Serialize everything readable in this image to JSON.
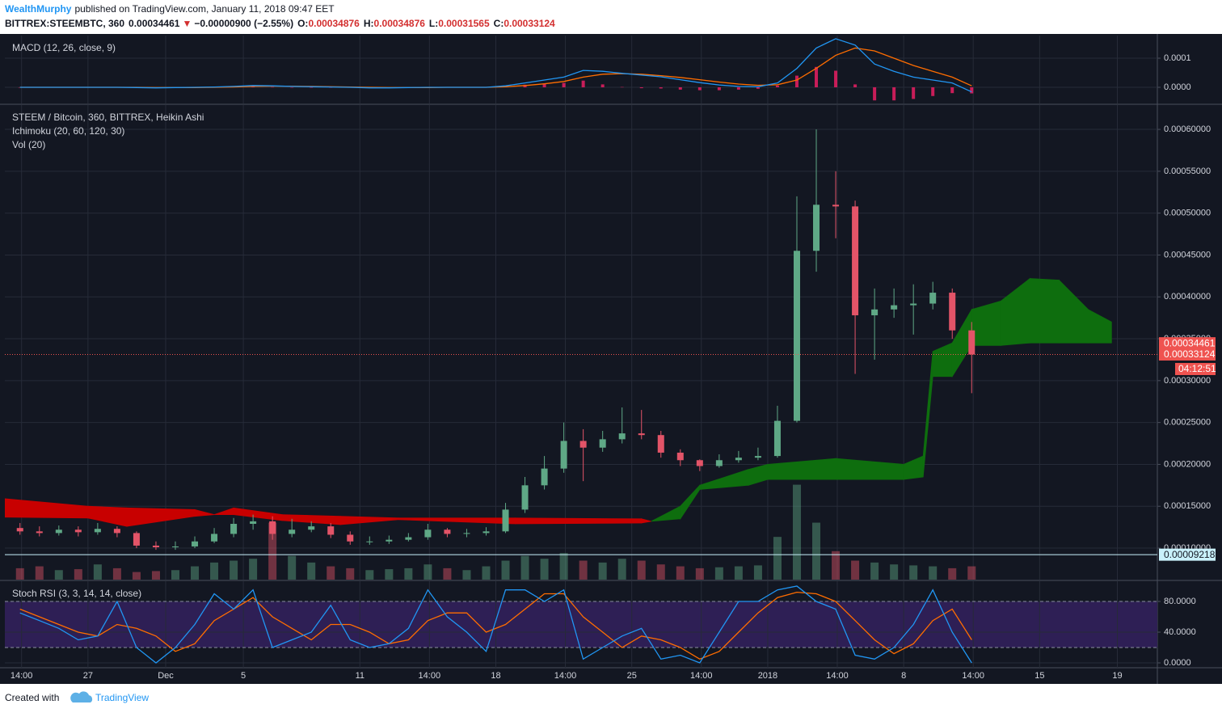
{
  "header": {
    "author": "WealthMurphy",
    "published": "published on TradingView.com, January 11, 2018 09:47 EET",
    "symbol": "BITTREX:STEEMBTC, 360",
    "last": "0.00034461",
    "change_arrow": "▼",
    "change": "−0.00000900 (−2.55%)",
    "o_label": "O:",
    "open": "0.00034876",
    "h_label": "H:",
    "high": "0.00034876",
    "l_label": "L:",
    "low": "0.00031565",
    "c_label": "C:",
    "close": "0.00033124"
  },
  "footer": {
    "created": "Created with",
    "brand": "TradingView"
  },
  "chart_data": [
    {
      "type": "macd",
      "title": "MACD (12, 26, close, 9)",
      "x": [
        0.5,
        1.5,
        2.5,
        3.5,
        4.5,
        5.5,
        6.5,
        7.5,
        8.5,
        9.5,
        10.5,
        11.5,
        12.5,
        13.5,
        14.5,
        15.5,
        16.5,
        17.5,
        18.5,
        19.5,
        20.5,
        21.5,
        22.5,
        23.5,
        24.5,
        25.5,
        26.5,
        27.5,
        28.5,
        29.5,
        30.5,
        31.5,
        32.5,
        33.5,
        34.5,
        35.5,
        36.5,
        37.5,
        38.5,
        39.5,
        40.5,
        41.5,
        42.5,
        43.5,
        44.5,
        45.5,
        46.5,
        47.5,
        48.5,
        49.5
      ],
      "macd": [
        0,
        0,
        0,
        0,
        0,
        0,
        -1e-06,
        -2e-06,
        -1e-06,
        0,
        1e-06,
        3e-06,
        6e-06,
        5e-06,
        3e-06,
        2e-06,
        1e-06,
        0,
        -2e-06,
        -2e-06,
        -1e-06,
        0,
        0,
        0,
        0,
        5e-06,
        1.5e-05,
        2.5e-05,
        3.5e-05,
        5.8e-05,
        5.5e-05,
        4.8e-05,
        4.2e-05,
        3.6e-05,
        2.6e-05,
        1.6e-05,
        8e-06,
        3e-06,
        2e-06,
        1.5e-05,
        6.5e-05,
        0.000135,
        0.000167,
        0.000145,
        8e-05,
        5.5e-05,
        3.5e-05,
        2.5e-05,
        1.5e-05,
        -1.6e-05
      ],
      "signal": [
        0,
        0,
        0,
        0,
        0,
        0,
        0,
        -1e-06,
        -1e-06,
        -1e-06,
        0,
        1e-06,
        3e-06,
        4e-06,
        4e-06,
        3e-06,
        2e-06,
        1e-06,
        0,
        -1e-06,
        -1e-06,
        -1e-06,
        0,
        0,
        0,
        2e-06,
        6e-06,
        1.2e-05,
        2e-05,
        3.5e-05,
        4.5e-05,
        4.7e-05,
        4.5e-05,
        4e-05,
        3.4e-05,
        2.6e-05,
        1.8e-05,
        1.1e-05,
        7e-06,
        9e-06,
        2.5e-05,
        6.5e-05,
        0.00011,
        0.000135,
        0.000125,
        0.0001,
        7.5e-05,
        5.5e-05,
        3.5e-05,
        5e-06
      ],
      "histogram": [
        0,
        0,
        0,
        0,
        0,
        0,
        -1e-06,
        -1e-06,
        0,
        1e-06,
        1e-06,
        2e-06,
        3e-06,
        1e-06,
        -1e-06,
        -1e-06,
        -1e-06,
        -1e-06,
        -2e-06,
        -1e-06,
        0,
        1e-06,
        0,
        0,
        0,
        3e-06,
        9e-06,
        1.3e-05,
        1.5e-05,
        2.3e-05,
        1e-05,
        1e-06,
        -3e-06,
        -4e-06,
        -8e-06,
        -1e-05,
        -1e-05,
        -8e-06,
        -5e-06,
        6e-06,
        4e-05,
        7e-05,
        5.7e-05,
        1e-05,
        -4.5e-05,
        -4.5e-05,
        -4e-05,
        -3e-05,
        -2e-05,
        -2.1e-05
      ],
      "macd_color": "#2196f3",
      "signal_color": "#ff6d00",
      "histogram_color": "#e91e63",
      "xlim": [
        -0.28,
        59.06
      ],
      "ylim": [
        -5.56e-05,
        0.0001778
      ],
      "yticks": [
        {
          "value": 0,
          "label": "0.0000"
        },
        0.0001
      ],
      "grid": true
    },
    {
      "type": "candlestick",
      "title": "STEEM / Bitcoin, 360, BITTREX, Heikin Ashi",
      "indicators": [
        "Ichimoku (20, 60, 120, 30)",
        "Vol (20)"
      ],
      "x": [
        0.5,
        1.5,
        2.5,
        3.5,
        4.5,
        5.5,
        6.5,
        7.5,
        8.5,
        9.5,
        10.5,
        11.5,
        12.5,
        13.5,
        14.5,
        15.5,
        16.5,
        17.5,
        18.5,
        19.5,
        20.5,
        21.5,
        22.5,
        23.5,
        24.5,
        25.5,
        26.5,
        27.5,
        28.5,
        29.5,
        30.5,
        31.5,
        32.5,
        33.5,
        34.5,
        35.5,
        36.5,
        37.5,
        38.5,
        39.5,
        40.5,
        41.5,
        42.5,
        43.5,
        44.5,
        45.5,
        46.5,
        47.5,
        48.5,
        49.5
      ],
      "open": [
        0.000124,
        0.00012,
        0.000118,
        0.000122,
        0.000119,
        0.000123,
        0.000118,
        0.000103,
        0.000101,
        0.000102,
        0.000108,
        0.000117,
        0.000129,
        0.000132,
        0.000117,
        0.000122,
        0.000126,
        0.000116,
        0.000108,
        0.000108,
        0.00011,
        0.000113,
        0.000122,
        0.000117,
        0.000118,
        0.00012,
        0.000146,
        0.000175,
        0.000195,
        0.000228,
        0.00022,
        0.00023,
        0.000237,
        0.000235,
        0.000214,
        0.000205,
        0.000198,
        0.000205,
        0.000208,
        0.00021,
        0.000252,
        0.000455,
        0.00051,
        0.000508,
        0.000378,
        0.000385,
        0.00039,
        0.000392,
        0.000405,
        0.00036
      ],
      "high": [
        0.00013,
        0.000126,
        0.000127,
        0.000126,
        0.00013,
        0.000126,
        0.00012,
        0.000108,
        0.000108,
        0.000114,
        0.000124,
        0.000136,
        0.00014,
        0.000138,
        0.000135,
        0.000132,
        0.00013,
        0.00012,
        0.000114,
        0.000115,
        0.000118,
        0.000129,
        0.000124,
        0.000123,
        0.000125,
        0.000154,
        0.000185,
        0.00021,
        0.00025,
        0.000242,
        0.00024,
        0.000268,
        0.000265,
        0.00024,
        0.000218,
        0.000206,
        0.000212,
        0.000216,
        0.00022,
        0.00027,
        0.00052,
        0.0006,
        0.00055,
        0.000515,
        0.00041,
        0.00041,
        0.000415,
        0.000418,
        0.00041,
        0.00037
      ],
      "low": [
        0.000116,
        0.000114,
        0.000115,
        0.000114,
        0.000116,
        0.000113,
        0.0001,
        9.8e-05,
        9.8e-05,
        0.0001,
        0.000106,
        0.000113,
        0.000122,
        0.00011,
        0.000113,
        0.000119,
        0.000112,
        0.000104,
        0.000104,
        0.000105,
        0.000108,
        0.00011,
        0.000113,
        0.000113,
        0.000115,
        0.000118,
        0.000142,
        0.00017,
        0.00019,
        0.00018,
        0.000215,
        0.000225,
        0.00023,
        0.000208,
        0.000198,
        0.000192,
        0.000196,
        0.000202,
        0.000205,
        0.000208,
        0.00025,
        0.00043,
        0.00047,
        0.000308,
        0.000325,
        0.000375,
        0.000355,
        0.000385,
        0.00035,
        0.000285
      ],
      "close": [
        0.00012,
        0.000118,
        0.000122,
        0.000119,
        0.000123,
        0.000118,
        0.000103,
        0.000101,
        0.000102,
        0.000108,
        0.000117,
        0.000129,
        0.000132,
        0.000117,
        0.000122,
        0.000126,
        0.000116,
        0.000108,
        0.000108,
        0.00011,
        0.000113,
        0.000122,
        0.000117,
        0.000118,
        0.00012,
        0.000146,
        0.000175,
        0.000195,
        0.000228,
        0.00022,
        0.00023,
        0.000237,
        0.000235,
        0.000214,
        0.000205,
        0.000198,
        0.000205,
        0.000208,
        0.00021,
        0.000252,
        0.000455,
        0.00051,
        0.000508,
        0.000378,
        0.000385,
        0.00039,
        0.000392,
        0.000405,
        0.00036,
        0.00033124
      ],
      "up_color": "#5fa886",
      "down_color": "#e35468",
      "volume": [
        12,
        14,
        10,
        11,
        16,
        12,
        8,
        9,
        10,
        14,
        18,
        20,
        22,
        60,
        25,
        18,
        14,
        12,
        10,
        11,
        12,
        16,
        12,
        10,
        14,
        20,
        25,
        22,
        28,
        20,
        18,
        22,
        20,
        16,
        14,
        12,
        13,
        14,
        15,
        45,
        100,
        60,
        30,
        20,
        18,
        16,
        15,
        14,
        12,
        14
      ],
      "volume_lim": [
        0,
        500
      ],
      "ichimoku": {
        "x": [
          -0.28,
          4,
          6,
          9.5,
          10.5,
          11.5,
          14,
          17,
          20,
          26,
          32.5,
          33,
          34.5,
          35.5,
          38,
          39,
          42.5,
          46,
          47,
          47.5,
          48.5,
          49.5,
          51,
          52.5,
          54,
          55.5,
          56.7
        ],
        "span_a": [
          0.000137,
          0.000136,
          0.000126,
          0.000138,
          0.00014,
          0.00014,
          0.000133,
          0.000128,
          0.000134,
          0.000129,
          0.00013,
          0.000132,
          0.00015,
          0.000175,
          0.000194,
          0.0002,
          0.000207,
          0.0002,
          0.00021,
          0.000335,
          0.000345,
          0.000385,
          0.000395,
          0.000422,
          0.00042,
          0.000385,
          0.00037
        ],
        "span_b": [
          0.000159,
          0.00015,
          0.000148,
          0.000146,
          0.00014,
          0.000148,
          0.00014,
          0.000138,
          0.000136,
          0.000136,
          0.000135,
          0.000132,
          0.000135,
          0.00017,
          0.000175,
          0.000182,
          0.000182,
          0.000182,
          0.000185,
          0.000305,
          0.000305,
          0.000342,
          0.000342,
          0.000345,
          0.000345,
          0.000345,
          0.000345
        ],
        "up_color": "#0e6e0e",
        "down_color": "#c80000"
      },
      "price_labels": [
        {
          "value": 0.00034461,
          "label": "0.00034461",
          "color": "#ef5350",
          "text_color": "#ffffff"
        },
        {
          "value": 0.00033124,
          "label": "0.00033124",
          "color": "#ef5350",
          "text_color": "#ffffff",
          "line": true
        },
        {
          "value": 9.218e-05,
          "label": "0.00009218",
          "color": "#c9f1fb",
          "text_color": "#131722",
          "line": true
        }
      ],
      "countdown": "04:12:51",
      "xlim": [
        -0.28,
        59.06
      ],
      "ylim": [
        6.24e-05,
        0.000629
      ],
      "yticks": [
        {
          "value": 0.0001,
          "label": "0.00010000"
        },
        {
          "value": 0.00015,
          "label": "0.00015000"
        },
        {
          "value": 0.0002,
          "label": "0.00020000"
        },
        {
          "value": 0.00025,
          "label": "0.00025000"
        },
        {
          "value": 0.0003,
          "label": "0.00030000"
        },
        {
          "value": 0.00035,
          "label": "0.00035000"
        },
        {
          "value": 0.0004,
          "label": "0.00040000"
        },
        {
          "value": 0.00045,
          "label": "0.00045000"
        },
        {
          "value": 0.0005,
          "label": "0.00050000"
        },
        {
          "value": 0.00055,
          "label": "0.00055000"
        },
        {
          "value": 0.0006,
          "label": "0.00060000"
        }
      ],
      "grid": true
    },
    {
      "type": "stoch",
      "title": "Stoch RSI (3, 3, 14, 14, close)",
      "x": [
        0.5,
        1.5,
        2.5,
        3.5,
        4.5,
        5.5,
        6.5,
        7.5,
        8.5,
        9.5,
        10.5,
        11.5,
        12.5,
        13.5,
        14.5,
        15.5,
        16.5,
        17.5,
        18.5,
        19.5,
        20.5,
        21.5,
        22.5,
        23.5,
        24.5,
        25.5,
        26.5,
        27.5,
        28.5,
        29.5,
        30.5,
        31.5,
        32.5,
        33.5,
        34.5,
        35.5,
        36.5,
        37.5,
        38.5,
        39.5,
        40.5,
        41.5,
        42.5,
        43.5,
        44.5,
        45.5,
        46.5,
        47.5,
        48.5,
        49.5
      ],
      "k": [
        65,
        55,
        45,
        30,
        35,
        80,
        20,
        0,
        20,
        50,
        90,
        70,
        95,
        20,
        30,
        40,
        75,
        30,
        20,
        25,
        45,
        95,
        60,
        40,
        15,
        95,
        95,
        80,
        95,
        5,
        20,
        35,
        45,
        5,
        10,
        0,
        40,
        80,
        80,
        95,
        100,
        80,
        70,
        10,
        5,
        20,
        50,
        95,
        40,
        0
      ],
      "d": [
        70,
        60,
        50,
        40,
        35,
        50,
        45,
        35,
        15,
        25,
        55,
        70,
        85,
        60,
        45,
        30,
        50,
        50,
        40,
        25,
        30,
        55,
        65,
        65,
        40,
        50,
        70,
        90,
        90,
        60,
        40,
        20,
        35,
        30,
        20,
        5,
        15,
        40,
        65,
        85,
        92,
        90,
        80,
        55,
        30,
        12,
        25,
        55,
        70,
        30
      ],
      "k_color": "#2196f3",
      "d_color": "#ff6d00",
      "band": [
        20,
        80
      ],
      "band_color": "#2e1f55",
      "xlim": [
        -0.28,
        59.06
      ],
      "ylim": [
        -6.3,
        106.3
      ],
      "yticks": [
        {
          "value": 0,
          "label": "0.0000"
        },
        {
          "value": 40,
          "label": "40.0000"
        },
        {
          "value": 80,
          "label": "80.0000"
        }
      ],
      "xticks": [
        {
          "value": 0.58,
          "label": "14:00"
        },
        {
          "value": 4,
          "label": "27"
        },
        {
          "value": 8,
          "label": "Dec"
        },
        {
          "value": 12,
          "label": "5"
        },
        {
          "value": 18,
          "label": "11"
        },
        {
          "value": 21.58,
          "label": "14:00"
        },
        {
          "value": 25,
          "label": "18"
        },
        {
          "value": 28.58,
          "label": "14:00"
        },
        {
          "value": 32,
          "label": "25"
        },
        {
          "value": 35.58,
          "label": "14:00"
        },
        {
          "value": 39,
          "label": "2018"
        },
        {
          "value": 42.58,
          "label": "14:00"
        },
        {
          "value": 46,
          "label": "8"
        },
        {
          "value": 49.58,
          "label": "14:00"
        },
        {
          "value": 53,
          "label": "15"
        },
        {
          "value": 57,
          "label": "19"
        }
      ],
      "grid": true
    }
  ]
}
